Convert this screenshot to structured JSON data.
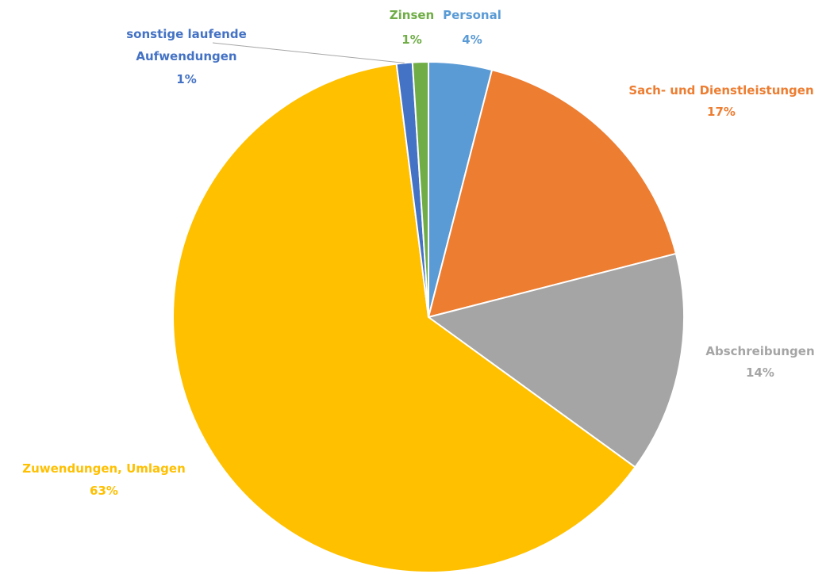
{
  "chart_data": {
    "type": "pie",
    "title": "",
    "slices": [
      {
        "name": "Personal",
        "value": 4,
        "label": "4%",
        "color": "#5B9BD5"
      },
      {
        "name": "Sach- und Dienstleistungen",
        "value": 17,
        "label": "17%",
        "color": "#ED7D31"
      },
      {
        "name": "Abschreibungen",
        "value": 14,
        "label": "14%",
        "color": "#A5A5A5"
      },
      {
        "name": "Zuwendungen, Umlagen",
        "value": 63,
        "label": "63%",
        "color": "#FFC000"
      },
      {
        "name": "sonstige laufende Aufwendungen",
        "value": 1,
        "label": "1%",
        "color": "#4472C4"
      },
      {
        "name": "Zinsen",
        "value": 1,
        "label": "1%",
        "color": "#70AD47"
      }
    ]
  }
}
